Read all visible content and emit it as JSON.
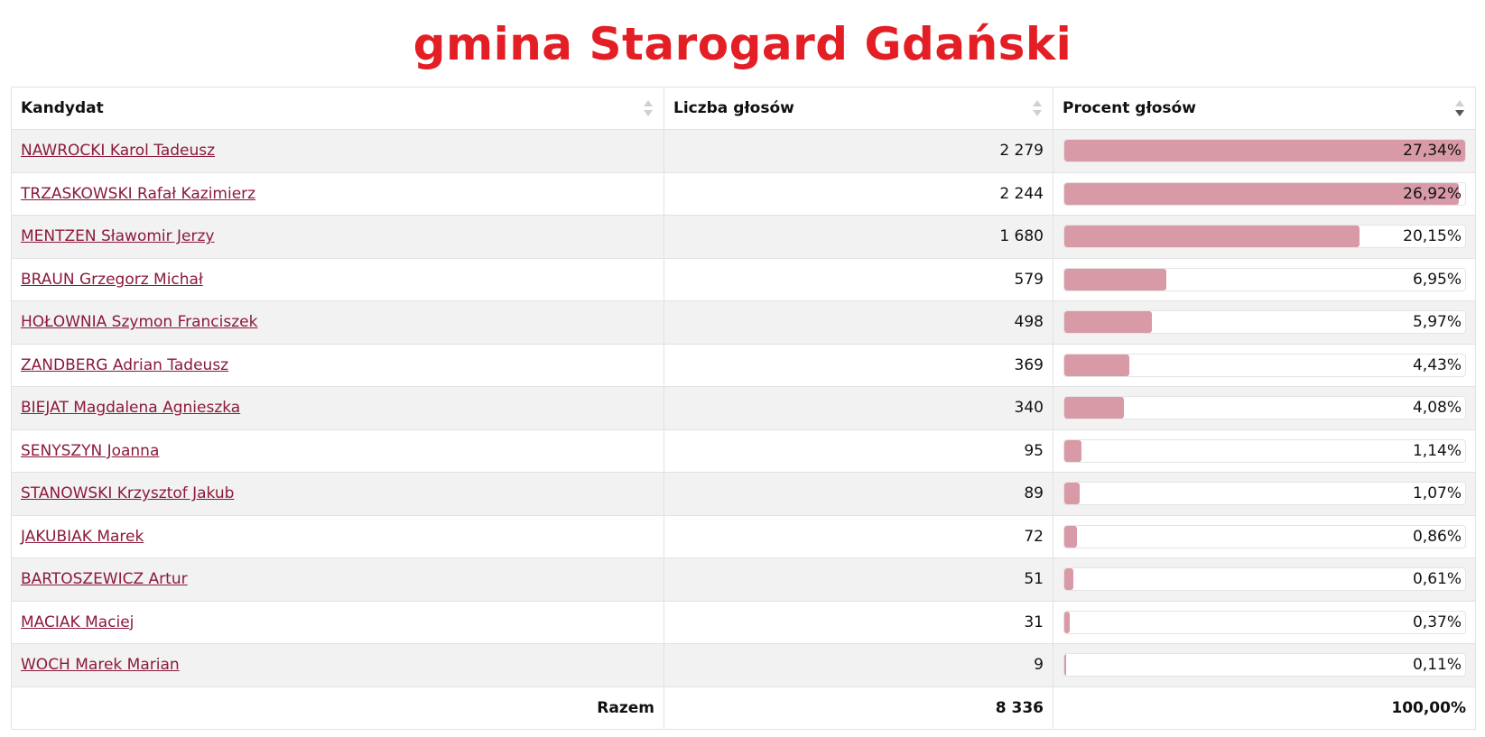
{
  "page": {
    "title": "gmina Starogard Gdański"
  },
  "table": {
    "headers": {
      "candidate": "Kandydat",
      "votes": "Liczba głosów",
      "percent": "Procent głosów"
    },
    "rows": [
      {
        "name": "NAWROCKI Karol Tadeusz",
        "votes": "2 279",
        "percent_label": "27,34%",
        "percent": 27.34
      },
      {
        "name": "TRZASKOWSKI Rafał Kazimierz",
        "votes": "2 244",
        "percent_label": "26,92%",
        "percent": 26.92
      },
      {
        "name": "MENTZEN Sławomir Jerzy",
        "votes": "1 680",
        "percent_label": "20,15%",
        "percent": 20.15
      },
      {
        "name": "BRAUN Grzegorz Michał",
        "votes": "579",
        "percent_label": "6,95%",
        "percent": 6.95
      },
      {
        "name": "HOŁOWNIA Szymon Franciszek",
        "votes": "498",
        "percent_label": "5,97%",
        "percent": 5.97
      },
      {
        "name": "ZANDBERG Adrian Tadeusz",
        "votes": "369",
        "percent_label": "4,43%",
        "percent": 4.43
      },
      {
        "name": "BIEJAT Magdalena Agnieszka",
        "votes": "340",
        "percent_label": "4,08%",
        "percent": 4.08
      },
      {
        "name": "SENYSZYN Joanna",
        "votes": "95",
        "percent_label": "1,14%",
        "percent": 1.14
      },
      {
        "name": "STANOWSKI Krzysztof Jakub",
        "votes": "89",
        "percent_label": "1,07%",
        "percent": 1.07
      },
      {
        "name": "JAKUBIAK Marek",
        "votes": "72",
        "percent_label": "0,86%",
        "percent": 0.86
      },
      {
        "name": "BARTOSZEWICZ Artur",
        "votes": "51",
        "percent_label": "0,61%",
        "percent": 0.61
      },
      {
        "name": "MACIAK Maciej",
        "votes": "31",
        "percent_label": "0,37%",
        "percent": 0.37
      },
      {
        "name": "WOCH Marek Marian",
        "votes": "9",
        "percent_label": "0,11%",
        "percent": 0.11
      }
    ],
    "footer": {
      "label": "Razem",
      "votes": "8 336",
      "percent": "100,00%"
    }
  },
  "colors": {
    "title": "#e31e24",
    "link": "#8b1a3a",
    "bar": "#d99aa7"
  },
  "sort": {
    "column": "percent",
    "direction": "desc"
  }
}
